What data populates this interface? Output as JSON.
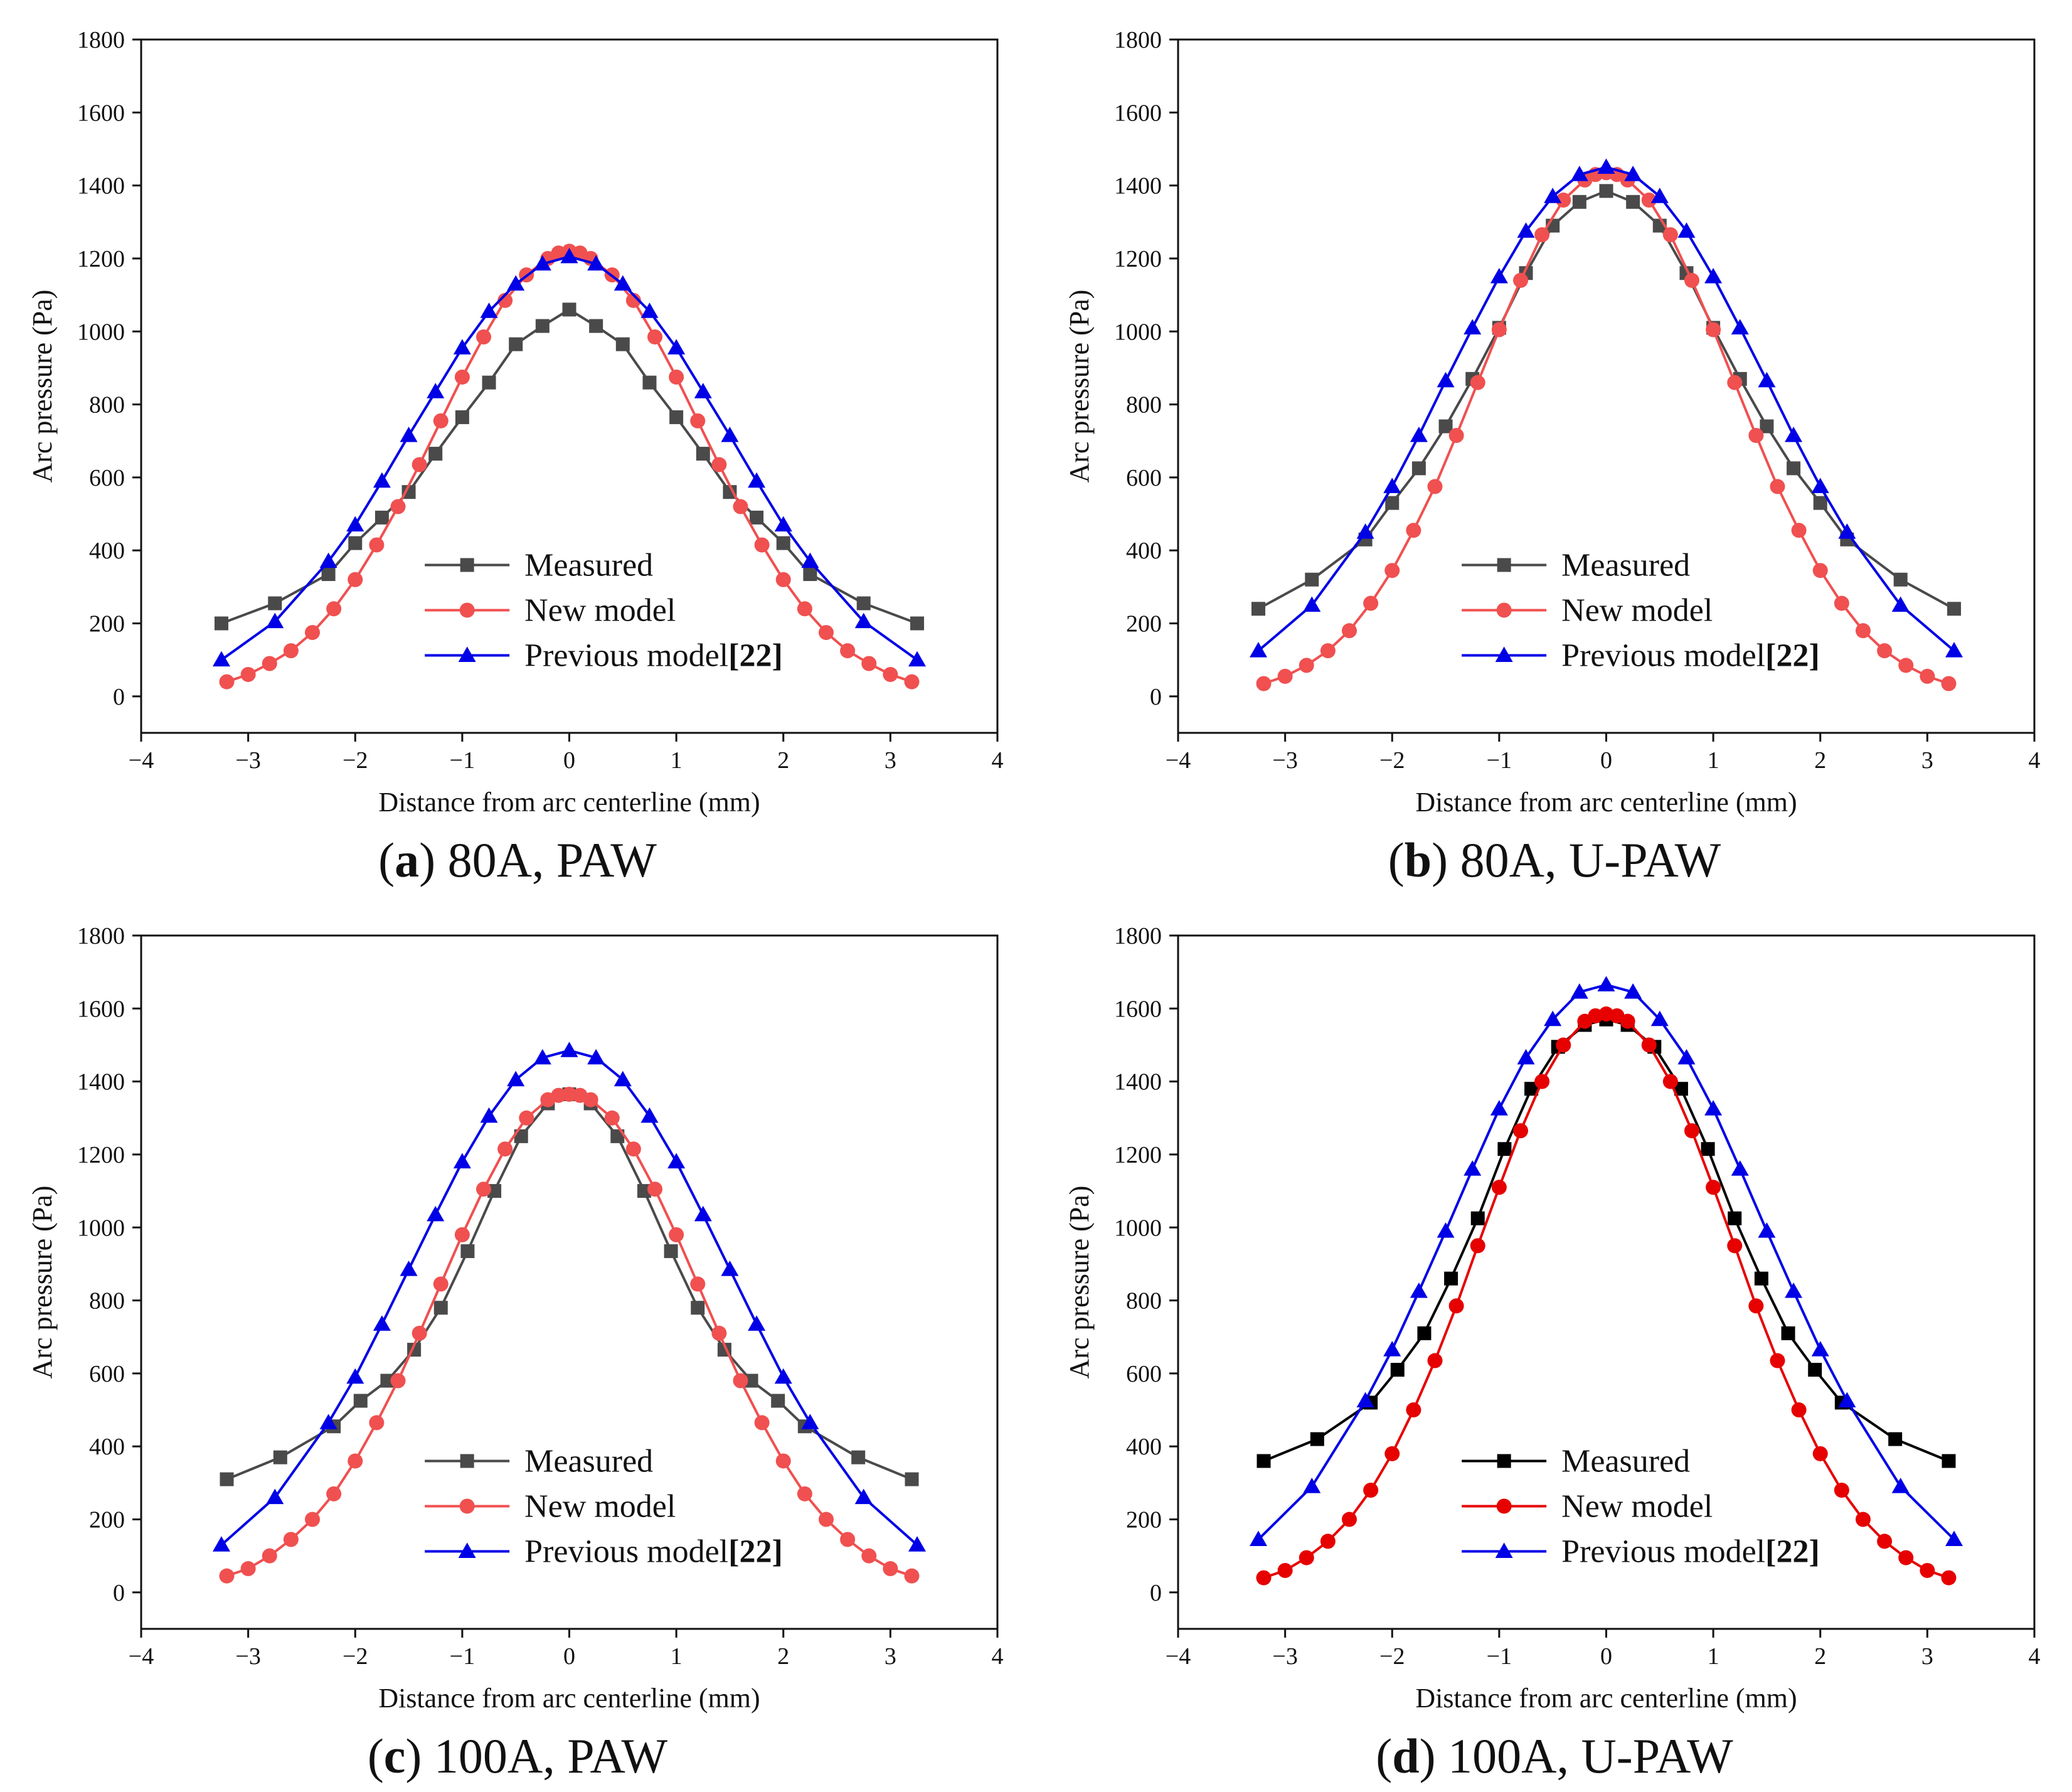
{
  "colors": {
    "measured_gray": "#4a4a4a",
    "measured_black": "#000000",
    "new_model_lightred": "#f05050",
    "new_model_red": "#e60000",
    "previous_model_blue": "#0000e6"
  },
  "chart_data": [
    {
      "type": "line",
      "caption": {
        "letter": "a",
        "text": " 80A, PAW",
        "open": "(",
        "close": ")"
      },
      "xlabel": "Distance from arc centerline (mm)",
      "ylabel": "Arc pressure (Pa)",
      "xlim": [
        -4,
        4
      ],
      "ylim": [
        -100,
        1800
      ],
      "xticks": [
        -4,
        -3,
        -2,
        -1,
        0,
        1,
        2,
        3,
        4
      ],
      "yticks": [
        0,
        200,
        400,
        600,
        800,
        1000,
        1200,
        1400,
        1600,
        1800
      ],
      "legend": {
        "position": "bottom-center",
        "ref": "[22]"
      },
      "series": [
        {
          "name": "Measured",
          "marker": "square",
          "color": "#4a4a4a",
          "x": [
            -3.25,
            -2.75,
            -2.25,
            -2,
            -1.75,
            -1.5,
            -1.25,
            -1,
            -0.75,
            -0.5,
            -0.25,
            0,
            0.25,
            0.5,
            0.75,
            1,
            1.25,
            1.5,
            1.75,
            2,
            2.25,
            2.75,
            3.25
          ],
          "y": [
            200,
            255,
            335,
            420,
            490,
            560,
            665,
            765,
            860,
            965,
            1015,
            1060,
            1015,
            965,
            860,
            765,
            665,
            560,
            490,
            420,
            335,
            255,
            200
          ]
        },
        {
          "name": "New model",
          "marker": "circle",
          "color": "#f05050",
          "x": [
            -3.2,
            -3.0,
            -2.8,
            -2.6,
            -2.4,
            -2.2,
            -2.0,
            -1.8,
            -1.6,
            -1.4,
            -1.2,
            -1.0,
            -0.8,
            -0.6,
            -0.4,
            -0.2,
            -0.1,
            0,
            0.1,
            0.2,
            0.4,
            0.6,
            0.8,
            1.0,
            1.2,
            1.4,
            1.6,
            1.8,
            2.0,
            2.2,
            2.4,
            2.6,
            2.8,
            3.0,
            3.2
          ],
          "y": [
            40,
            60,
            90,
            125,
            175,
            240,
            320,
            415,
            520,
            635,
            755,
            875,
            985,
            1085,
            1155,
            1200,
            1215,
            1220,
            1215,
            1200,
            1155,
            1085,
            985,
            875,
            755,
            635,
            520,
            415,
            320,
            240,
            175,
            125,
            90,
            60,
            40
          ]
        },
        {
          "name": "Previous model",
          "marker": "triangle",
          "color": "#0000e6",
          "x": [
            -3.25,
            -2.75,
            -2.25,
            -2,
            -1.75,
            -1.5,
            -1.25,
            -1,
            -0.75,
            -0.5,
            -0.25,
            0,
            0.25,
            0.5,
            0.75,
            1,
            1.25,
            1.5,
            1.75,
            2,
            2.25,
            2.75,
            3.25
          ],
          "y": [
            100,
            205,
            370,
            470,
            590,
            715,
            835,
            955,
            1055,
            1130,
            1185,
            1205,
            1185,
            1130,
            1055,
            955,
            835,
            715,
            590,
            470,
            370,
            205,
            100
          ]
        }
      ]
    },
    {
      "type": "line",
      "caption": {
        "letter": "b",
        "text": " 80A, U-PAW",
        "open": "(",
        "close": ")"
      },
      "xlabel": "Distance from arc centerline (mm)",
      "ylabel": "Arc pressure (Pa)",
      "xlim": [
        -4,
        4
      ],
      "ylim": [
        -100,
        1800
      ],
      "xticks": [
        -4,
        -3,
        -2,
        -1,
        0,
        1,
        2,
        3,
        4
      ],
      "yticks": [
        0,
        200,
        400,
        600,
        800,
        1000,
        1200,
        1400,
        1600,
        1800
      ],
      "legend": {
        "position": "bottom-center",
        "ref": "[22]"
      },
      "series": [
        {
          "name": "Measured",
          "marker": "square",
          "color": "#4a4a4a",
          "x": [
            -3.25,
            -2.75,
            -2.25,
            -2,
            -1.75,
            -1.5,
            -1.25,
            -1,
            -0.75,
            -0.5,
            -0.25,
            0,
            0.25,
            0.5,
            0.75,
            1,
            1.25,
            1.5,
            1.75,
            2,
            2.25,
            2.75,
            3.25
          ],
          "y": [
            240,
            320,
            430,
            530,
            625,
            740,
            870,
            1010,
            1160,
            1290,
            1355,
            1385,
            1355,
            1290,
            1160,
            1010,
            870,
            740,
            625,
            530,
            430,
            320,
            240
          ]
        },
        {
          "name": "New model",
          "marker": "circle",
          "color": "#f05050",
          "x": [
            -3.2,
            -3.0,
            -2.8,
            -2.6,
            -2.4,
            -2.2,
            -2.0,
            -1.8,
            -1.6,
            -1.4,
            -1.2,
            -1.0,
            -0.8,
            -0.6,
            -0.4,
            -0.2,
            -0.1,
            0,
            0.1,
            0.2,
            0.4,
            0.6,
            0.8,
            1.0,
            1.2,
            1.4,
            1.6,
            1.8,
            2.0,
            2.2,
            2.4,
            2.6,
            2.8,
            3.0,
            3.2
          ],
          "y": [
            35,
            55,
            85,
            125,
            180,
            255,
            345,
            455,
            575,
            715,
            860,
            1005,
            1140,
            1265,
            1360,
            1415,
            1430,
            1435,
            1430,
            1415,
            1360,
            1265,
            1140,
            1005,
            860,
            715,
            575,
            455,
            345,
            255,
            180,
            125,
            85,
            55,
            35
          ]
        },
        {
          "name": "Previous model",
          "marker": "triangle",
          "color": "#0000e6",
          "x": [
            -3.25,
            -2.75,
            -2.25,
            -2,
            -1.75,
            -1.5,
            -1.25,
            -1,
            -0.75,
            -0.5,
            -0.25,
            0,
            0.25,
            0.5,
            0.75,
            1,
            1.25,
            1.5,
            1.75,
            2,
            2.25,
            2.75,
            3.25
          ],
          "y": [
            125,
            250,
            450,
            575,
            715,
            865,
            1010,
            1150,
            1275,
            1370,
            1430,
            1450,
            1430,
            1370,
            1275,
            1150,
            1010,
            865,
            715,
            575,
            450,
            250,
            125
          ]
        }
      ]
    },
    {
      "type": "line",
      "caption": {
        "letter": "c",
        "text": " 100A, PAW",
        "open": "(",
        "close": ")"
      },
      "xlabel": "Distance from arc centerline (mm)",
      "ylabel": "Arc pressure (Pa)",
      "xlim": [
        -4,
        4
      ],
      "ylim": [
        -100,
        1800
      ],
      "xticks": [
        -4,
        -3,
        -2,
        -1,
        0,
        1,
        2,
        3,
        4
      ],
      "yticks": [
        0,
        200,
        400,
        600,
        800,
        1000,
        1200,
        1400,
        1600,
        1800
      ],
      "legend": {
        "position": "bottom-center",
        "ref": "[22]"
      },
      "series": [
        {
          "name": "Measured",
          "marker": "square",
          "color": "#4a4a4a",
          "x": [
            -3.2,
            -2.7,
            -2.2,
            -1.95,
            -1.7,
            -1.45,
            -1.2,
            -0.95,
            -0.7,
            -0.45,
            -0.2,
            0,
            0.2,
            0.45,
            0.7,
            0.95,
            1.2,
            1.45,
            1.7,
            1.95,
            2.2,
            2.7,
            3.2
          ],
          "y": [
            310,
            370,
            455,
            525,
            580,
            665,
            780,
            935,
            1100,
            1250,
            1340,
            1365,
            1340,
            1250,
            1100,
            935,
            780,
            665,
            580,
            525,
            455,
            370,
            310
          ]
        },
        {
          "name": "New model",
          "marker": "circle",
          "color": "#f05050",
          "x": [
            -3.2,
            -3.0,
            -2.8,
            -2.6,
            -2.4,
            -2.2,
            -2.0,
            -1.8,
            -1.6,
            -1.4,
            -1.2,
            -1.0,
            -0.8,
            -0.6,
            -0.4,
            -0.2,
            -0.1,
            0,
            0.1,
            0.2,
            0.4,
            0.6,
            0.8,
            1.0,
            1.2,
            1.4,
            1.6,
            1.8,
            2.0,
            2.2,
            2.4,
            2.6,
            2.8,
            3.0,
            3.2
          ],
          "y": [
            45,
            65,
            100,
            145,
            200,
            270,
            360,
            465,
            580,
            710,
            845,
            980,
            1105,
            1215,
            1300,
            1350,
            1362,
            1365,
            1362,
            1350,
            1300,
            1215,
            1105,
            980,
            845,
            710,
            580,
            465,
            360,
            270,
            200,
            145,
            100,
            65,
            45
          ]
        },
        {
          "name": "Previous model",
          "marker": "triangle",
          "color": "#0000e6",
          "x": [
            -3.25,
            -2.75,
            -2.25,
            -2,
            -1.75,
            -1.5,
            -1.25,
            -1,
            -0.75,
            -0.5,
            -0.25,
            0,
            0.25,
            0.5,
            0.75,
            1,
            1.25,
            1.5,
            1.75,
            2,
            2.25,
            2.75,
            3.25
          ],
          "y": [
            130,
            260,
            465,
            590,
            735,
            885,
            1035,
            1180,
            1305,
            1405,
            1465,
            1485,
            1465,
            1405,
            1305,
            1180,
            1035,
            885,
            735,
            590,
            465,
            260,
            130
          ]
        }
      ]
    },
    {
      "type": "line",
      "caption": {
        "letter": "d",
        "text": " 100A, U-PAW",
        "open": "(",
        "close": ")"
      },
      "xlabel": "Distance from arc centerline (mm)",
      "ylabel": "Arc pressure (Pa)",
      "xlim": [
        -4,
        4
      ],
      "ylim": [
        -100,
        1800
      ],
      "xticks": [
        -4,
        -3,
        -2,
        -1,
        0,
        1,
        2,
        3,
        4
      ],
      "yticks": [
        0,
        200,
        400,
        600,
        800,
        1000,
        1200,
        1400,
        1600,
        1800
      ],
      "legend": {
        "position": "bottom-center",
        "ref": "[22]"
      },
      "series": [
        {
          "name": "Measured",
          "marker": "square",
          "color": "#000000",
          "x": [
            -3.2,
            -2.7,
            -2.2,
            -1.95,
            -1.7,
            -1.45,
            -1.2,
            -0.95,
            -0.7,
            -0.45,
            -0.2,
            0,
            0.2,
            0.45,
            0.7,
            0.95,
            1.2,
            1.45,
            1.7,
            1.95,
            2.2,
            2.7,
            3.2
          ],
          "y": [
            360,
            420,
            520,
            610,
            710,
            860,
            1025,
            1215,
            1380,
            1495,
            1555,
            1570,
            1555,
            1495,
            1380,
            1215,
            1025,
            860,
            710,
            610,
            520,
            420,
            360
          ]
        },
        {
          "name": "New model",
          "marker": "circle",
          "color": "#e60000",
          "x": [
            -3.2,
            -3.0,
            -2.8,
            -2.6,
            -2.4,
            -2.2,
            -2.0,
            -1.8,
            -1.6,
            -1.4,
            -1.2,
            -1.0,
            -0.8,
            -0.6,
            -0.4,
            -0.2,
            -0.1,
            0,
            0.1,
            0.2,
            0.4,
            0.6,
            0.8,
            1.0,
            1.2,
            1.4,
            1.6,
            1.8,
            2.0,
            2.2,
            2.4,
            2.6,
            2.8,
            3.0,
            3.2
          ],
          "y": [
            40,
            60,
            95,
            140,
            200,
            280,
            380,
            500,
            635,
            785,
            950,
            1110,
            1265,
            1400,
            1500,
            1565,
            1580,
            1585,
            1580,
            1565,
            1500,
            1400,
            1265,
            1110,
            950,
            785,
            635,
            500,
            380,
            280,
            200,
            140,
            95,
            60,
            40
          ]
        },
        {
          "name": "Previous model",
          "marker": "triangle",
          "color": "#0000e6",
          "x": [
            -3.25,
            -2.75,
            -2.25,
            -2,
            -1.75,
            -1.5,
            -1.25,
            -1,
            -0.75,
            -0.5,
            -0.25,
            0,
            0.25,
            0.5,
            0.75,
            1,
            1.25,
            1.5,
            1.75,
            2,
            2.25,
            2.75,
            3.25
          ],
          "y": [
            145,
            290,
            525,
            665,
            825,
            990,
            1160,
            1325,
            1465,
            1570,
            1645,
            1665,
            1645,
            1570,
            1465,
            1325,
            1160,
            990,
            825,
            665,
            525,
            290,
            145
          ]
        }
      ]
    }
  ]
}
